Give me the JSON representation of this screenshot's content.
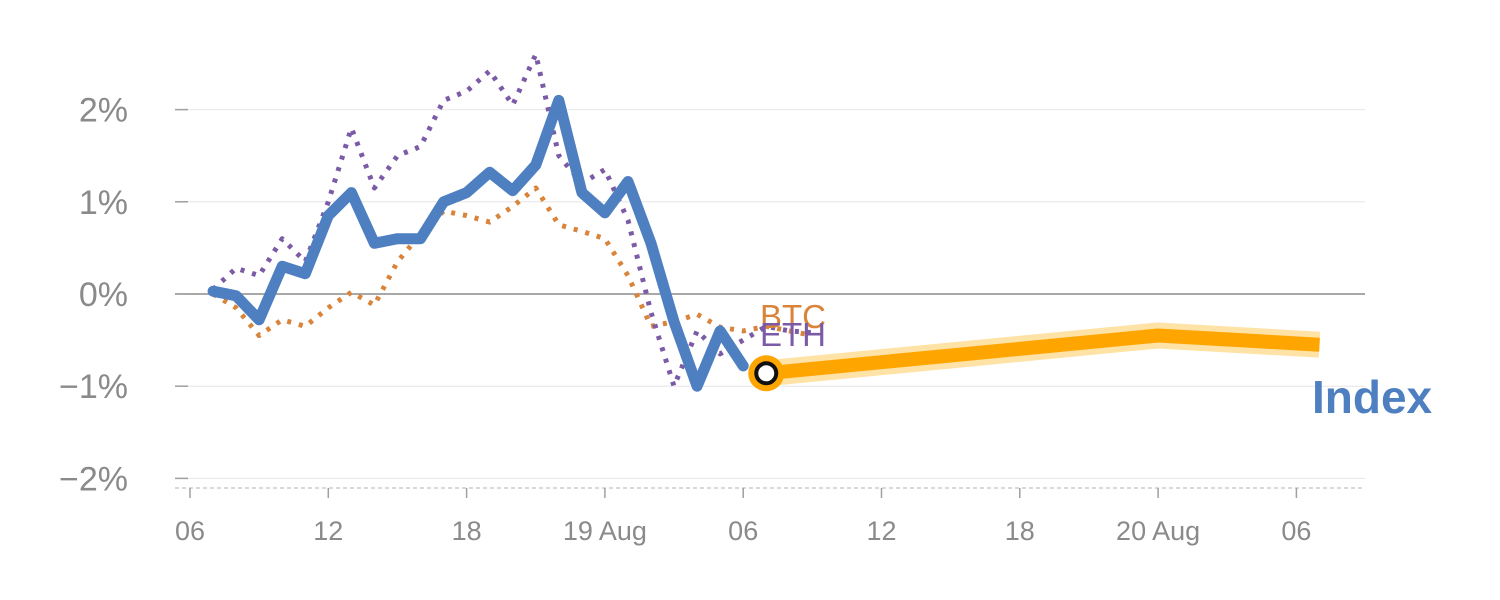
{
  "chart_data": {
    "type": "line",
    "x_unit": "hours",
    "x_range": [
      -1,
      48.5
    ],
    "ylim": [
      -2.1,
      2.3
    ],
    "y_ticks": [
      2,
      1,
      0,
      -1,
      -2
    ],
    "y_tick_labels": [
      "2%",
      "1%",
      "0%",
      "−1%",
      "−2%"
    ],
    "x_ticks": [
      0,
      6,
      12,
      18,
      24,
      30,
      36,
      42,
      48
    ],
    "x_tick_labels": [
      "06",
      "12",
      "18",
      "19 Aug",
      "06",
      "12",
      "18",
      "20 Aug",
      "06"
    ],
    "grid": true,
    "colors": {
      "index": "#4e7fc0",
      "btc": "#d9843a",
      "eth": "#7b5aa6",
      "forecast": "#ffa500",
      "forecast_band": "#ffe2a6",
      "grid": "#e6e6e6",
      "zero_line": "#8c8c8c",
      "axis": "#d9d9d9"
    },
    "series": [
      {
        "name": "BTC",
        "style": "dotted",
        "x": [
          1,
          2,
          3,
          4,
          5,
          6,
          7,
          8,
          9,
          10,
          11,
          12,
          13,
          14,
          15,
          16,
          17,
          18,
          19,
          20,
          21,
          22,
          23,
          24,
          25,
          26,
          27
        ],
        "y": [
          0.0,
          -0.15,
          -0.45,
          -0.28,
          -0.35,
          -0.15,
          0.02,
          -0.12,
          0.35,
          0.65,
          0.9,
          0.85,
          0.78,
          0.95,
          1.15,
          0.75,
          0.68,
          0.6,
          0.2,
          -0.35,
          -0.3,
          -0.22,
          -0.36,
          -0.4,
          -0.35,
          -0.4,
          -0.45
        ]
      },
      {
        "name": "ETH",
        "style": "dotted",
        "x": [
          1,
          2,
          3,
          4,
          5,
          6,
          7,
          8,
          9,
          10,
          11,
          12,
          13,
          14,
          15,
          16,
          17,
          18,
          19,
          20,
          21,
          22,
          23,
          24,
          25,
          26,
          27
        ],
        "y": [
          0.05,
          0.28,
          0.2,
          0.6,
          0.35,
          1.0,
          1.8,
          1.15,
          1.5,
          1.6,
          2.1,
          2.2,
          2.42,
          2.05,
          2.6,
          1.5,
          1.2,
          1.35,
          0.8,
          -0.2,
          -1.0,
          -0.4,
          -0.65,
          -0.5,
          -0.35,
          -0.4,
          -0.42
        ]
      },
      {
        "name": "Index",
        "style": "solid",
        "x": [
          1,
          2,
          3,
          4,
          5,
          6,
          7,
          8,
          9,
          10,
          11,
          12,
          13,
          14,
          15,
          16,
          17,
          18,
          19,
          20,
          21,
          22,
          23,
          24
        ],
        "y": [
          0.03,
          -0.02,
          -0.28,
          0.3,
          0.22,
          0.85,
          1.1,
          0.55,
          0.6,
          0.6,
          1.0,
          1.1,
          1.32,
          1.12,
          1.4,
          2.1,
          1.1,
          0.88,
          1.22,
          0.55,
          -0.3,
          -1.0,
          -0.4,
          -0.78
        ]
      },
      {
        "name": "forecast",
        "style": "band",
        "x": [
          25,
          42,
          49
        ],
        "y": [
          -0.86,
          -0.45,
          -0.55
        ]
      }
    ],
    "marker": {
      "x": 25,
      "y": -0.86
    },
    "labels": {
      "btc": "BTC",
      "eth": "ETH",
      "index": "Index"
    }
  }
}
